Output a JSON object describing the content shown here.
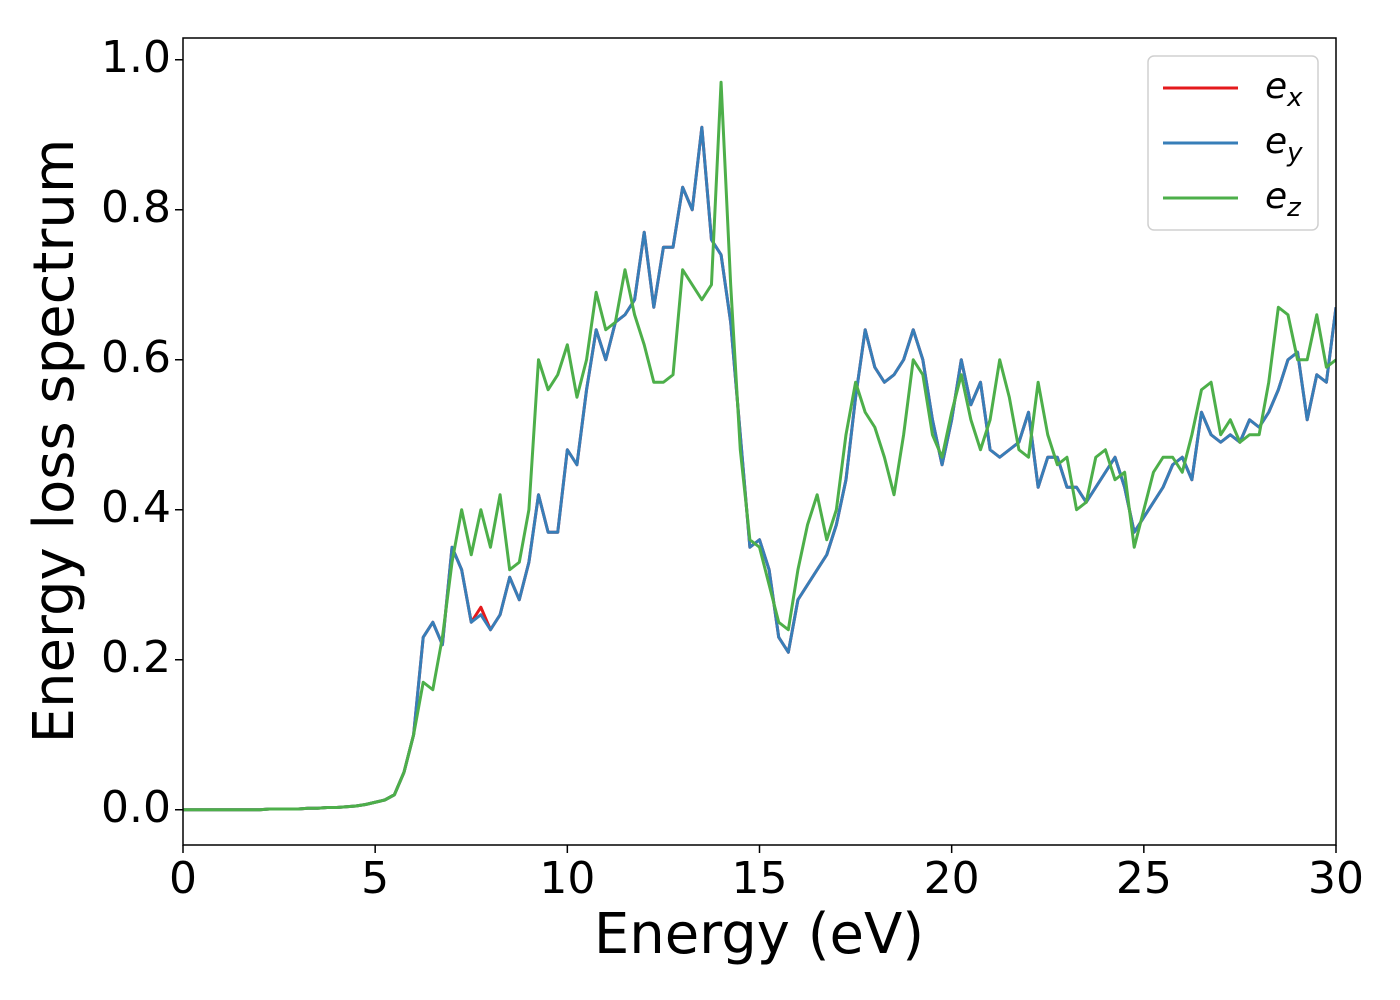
{
  "chart_data": {
    "type": "line",
    "xlabel": "Energy (eV)",
    "ylabel": "Energy loss spectrum",
    "x": [
      0,
      0.25,
      0.5,
      0.75,
      1,
      1.25,
      1.5,
      1.75,
      2,
      2.25,
      2.5,
      2.75,
      3,
      3.25,
      3.5,
      3.75,
      4,
      4.25,
      4.5,
      4.75,
      5,
      5.25,
      5.5,
      5.75,
      6,
      6.25,
      6.5,
      6.75,
      7,
      7.25,
      7.5,
      7.75,
      8,
      8.25,
      8.5,
      8.75,
      9,
      9.25,
      9.5,
      9.75,
      10,
      10.25,
      10.5,
      10.75,
      11,
      11.25,
      11.5,
      11.75,
      12,
      12.25,
      12.5,
      12.75,
      13,
      13.25,
      13.5,
      13.75,
      14,
      14.25,
      14.5,
      14.75,
      15,
      15.25,
      15.5,
      15.75,
      16,
      16.25,
      16.5,
      16.75,
      17,
      17.25,
      17.5,
      17.75,
      18,
      18.25,
      18.5,
      18.75,
      19,
      19.25,
      19.5,
      19.75,
      20,
      20.25,
      20.5,
      20.75,
      21,
      21.25,
      21.5,
      21.75,
      22,
      22.25,
      22.5,
      22.75,
      23,
      23.25,
      23.5,
      23.75,
      24,
      24.25,
      24.5,
      24.75,
      25,
      25.25,
      25.5,
      25.75,
      26,
      26.25,
      26.5,
      26.75,
      27,
      27.25,
      27.5,
      27.75,
      28,
      28.25,
      28.5,
      28.75,
      29,
      29.25,
      29.5,
      29.75,
      30
    ],
    "series": [
      {
        "name": "e_x",
        "color": "#e41a1c",
        "values": [
          0,
          0,
          0,
          0,
          0,
          0,
          0,
          0,
          0,
          0.001,
          0.001,
          0.001,
          0.001,
          0.002,
          0.002,
          0.003,
          0.003,
          0.004,
          0.005,
          0.007,
          0.01,
          0.013,
          0.02,
          0.05,
          0.1,
          0.23,
          0.25,
          0.22,
          0.35,
          0.32,
          0.25,
          0.27,
          0.24,
          0.26,
          0.31,
          0.28,
          0.33,
          0.42,
          0.37,
          0.37,
          0.48,
          0.46,
          0.56,
          0.64,
          0.6,
          0.65,
          0.66,
          0.68,
          0.77,
          0.67,
          0.75,
          0.75,
          0.83,
          0.8,
          0.91,
          0.76,
          0.74,
          0.65,
          0.5,
          0.35,
          0.36,
          0.32,
          0.23,
          0.21,
          0.28,
          0.3,
          0.32,
          0.34,
          0.38,
          0.44,
          0.55,
          0.64,
          0.59,
          0.57,
          0.58,
          0.6,
          0.64,
          0.6,
          0.52,
          0.46,
          0.52,
          0.6,
          0.54,
          0.57,
          0.48,
          0.47,
          0.48,
          0.49,
          0.53,
          0.43,
          0.47,
          0.47,
          0.43,
          0.43,
          0.41,
          0.43,
          0.45,
          0.47,
          0.43,
          0.37,
          0.39,
          0.41,
          0.43,
          0.46,
          0.47,
          0.44,
          0.53,
          0.5,
          0.49,
          0.5,
          0.49,
          0.52,
          0.51,
          0.53,
          0.56,
          0.6,
          0.61,
          0.52,
          0.58,
          0.57,
          0.67
        ]
      },
      {
        "name": "e_y",
        "color": "#377eb8",
        "values": [
          0,
          0,
          0,
          0,
          0,
          0,
          0,
          0,
          0,
          0.001,
          0.001,
          0.001,
          0.001,
          0.002,
          0.002,
          0.003,
          0.003,
          0.004,
          0.005,
          0.007,
          0.01,
          0.013,
          0.02,
          0.05,
          0.1,
          0.23,
          0.25,
          0.22,
          0.35,
          0.32,
          0.25,
          0.26,
          0.24,
          0.26,
          0.31,
          0.28,
          0.33,
          0.42,
          0.37,
          0.37,
          0.48,
          0.46,
          0.56,
          0.64,
          0.6,
          0.65,
          0.66,
          0.68,
          0.77,
          0.67,
          0.75,
          0.75,
          0.83,
          0.8,
          0.91,
          0.76,
          0.74,
          0.65,
          0.5,
          0.35,
          0.36,
          0.32,
          0.23,
          0.21,
          0.28,
          0.3,
          0.32,
          0.34,
          0.38,
          0.44,
          0.55,
          0.64,
          0.59,
          0.57,
          0.58,
          0.6,
          0.64,
          0.6,
          0.52,
          0.46,
          0.52,
          0.6,
          0.54,
          0.57,
          0.48,
          0.47,
          0.48,
          0.49,
          0.53,
          0.43,
          0.47,
          0.47,
          0.43,
          0.43,
          0.41,
          0.43,
          0.45,
          0.47,
          0.43,
          0.37,
          0.39,
          0.41,
          0.43,
          0.46,
          0.47,
          0.44,
          0.53,
          0.5,
          0.49,
          0.5,
          0.49,
          0.52,
          0.51,
          0.53,
          0.56,
          0.6,
          0.61,
          0.52,
          0.58,
          0.57,
          0.67
        ]
      },
      {
        "name": "e_z",
        "color": "#4daf4a",
        "values": [
          0,
          0,
          0,
          0,
          0,
          0,
          0,
          0,
          0,
          0.001,
          0.001,
          0.001,
          0.001,
          0.002,
          0.002,
          0.003,
          0.003,
          0.004,
          0.005,
          0.007,
          0.01,
          0.013,
          0.02,
          0.05,
          0.1,
          0.17,
          0.16,
          0.23,
          0.33,
          0.4,
          0.34,
          0.4,
          0.35,
          0.42,
          0.32,
          0.33,
          0.4,
          0.6,
          0.56,
          0.58,
          0.62,
          0.55,
          0.6,
          0.69,
          0.64,
          0.65,
          0.72,
          0.66,
          0.62,
          0.57,
          0.57,
          0.58,
          0.72,
          0.7,
          0.68,
          0.7,
          0.97,
          0.7,
          0.48,
          0.36,
          0.35,
          0.3,
          0.25,
          0.24,
          0.32,
          0.38,
          0.42,
          0.36,
          0.4,
          0.5,
          0.57,
          0.53,
          0.51,
          0.47,
          0.42,
          0.5,
          0.6,
          0.58,
          0.5,
          0.47,
          0.53,
          0.58,
          0.52,
          0.48,
          0.52,
          0.6,
          0.55,
          0.48,
          0.47,
          0.57,
          0.5,
          0.46,
          0.47,
          0.4,
          0.41,
          0.47,
          0.48,
          0.44,
          0.45,
          0.35,
          0.4,
          0.45,
          0.47,
          0.47,
          0.45,
          0.5,
          0.56,
          0.57,
          0.5,
          0.52,
          0.49,
          0.5,
          0.5,
          0.57,
          0.67,
          0.66,
          0.6,
          0.6,
          0.66,
          0.59,
          0.6
        ]
      }
    ],
    "xlim": [
      0,
      30
    ],
    "xticks": [
      0,
      5,
      10,
      15,
      20,
      25,
      30
    ],
    "ylim": [
      -0.047,
      1.029
    ],
    "yticks": [
      {
        "value": 0,
        "label": "0.0"
      },
      0.2,
      0.4,
      0.6,
      0.8,
      {
        "value": 1,
        "label": "1.0"
      }
    ],
    "legend": "upper right",
    "grid": false
  }
}
